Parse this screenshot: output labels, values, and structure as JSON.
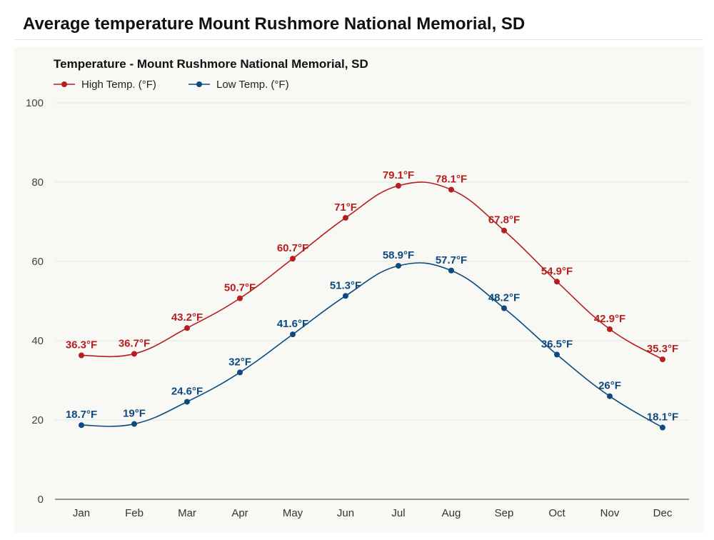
{
  "page": {
    "title": "Average temperature Mount Rushmore National Memorial, SD"
  },
  "chart_data": {
    "type": "line",
    "title": "Temperature - Mount Rushmore National Memorial, SD",
    "xlabel": "",
    "ylabel": "",
    "categories": [
      "Jan",
      "Feb",
      "Mar",
      "Apr",
      "May",
      "Jun",
      "Jul",
      "Aug",
      "Sep",
      "Oct",
      "Nov",
      "Dec"
    ],
    "ylim": [
      0,
      100
    ],
    "yticks": [
      0,
      20,
      40,
      60,
      80,
      100
    ],
    "grid": true,
    "legend_position": "top-left",
    "series": [
      {
        "name": "High Temp. (°F)",
        "color": "#b51f1f",
        "values": [
          36.3,
          36.7,
          43.2,
          50.7,
          60.7,
          71,
          79.1,
          78.1,
          67.8,
          54.9,
          42.9,
          35.3
        ],
        "labels": [
          "36.3°F",
          "36.7°F",
          "43.2°F",
          "50.7°F",
          "60.7°F",
          "71°F",
          "79.1°F",
          "78.1°F",
          "67.8°F",
          "54.9°F",
          "42.9°F",
          "35.3°F"
        ]
      },
      {
        "name": "Low Temp. (°F)",
        "color": "#0e4a7e",
        "values": [
          18.7,
          19,
          24.6,
          32,
          41.6,
          51.3,
          58.9,
          57.7,
          48.2,
          36.5,
          26,
          18.1
        ],
        "labels": [
          "18.7°F",
          "19°F",
          "24.6°F",
          "32°F",
          "41.6°F",
          "51.3°F",
          "58.9°F",
          "57.7°F",
          "48.2°F",
          "36.5°F",
          "26°F",
          "18.1°F"
        ]
      }
    ]
  }
}
